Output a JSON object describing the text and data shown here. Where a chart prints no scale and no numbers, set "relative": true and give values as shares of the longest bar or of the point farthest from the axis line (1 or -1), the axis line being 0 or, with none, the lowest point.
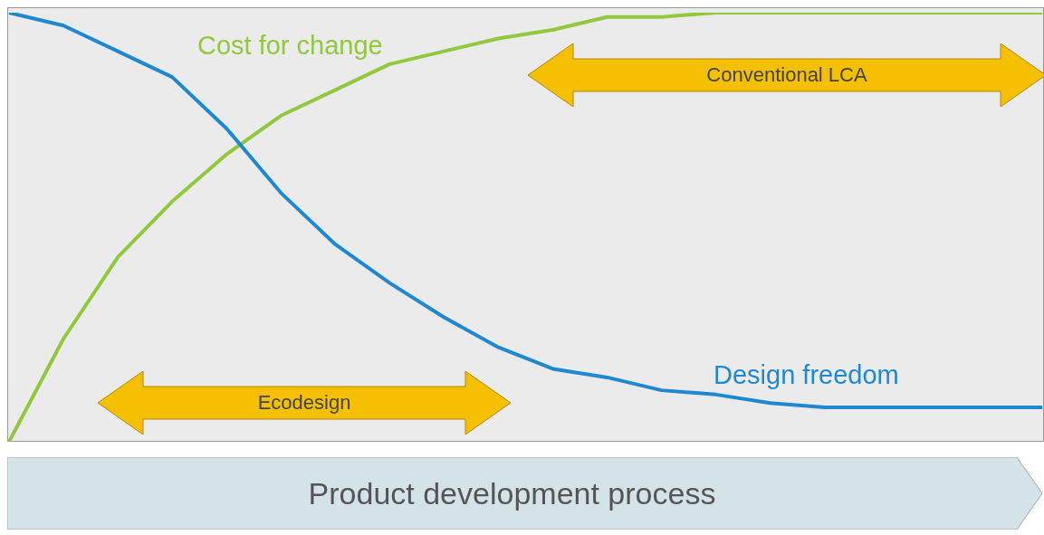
{
  "chart_data": {
    "type": "line",
    "relative": true,
    "xlabel": "Product development process",
    "categories": [
      null,
      null,
      null,
      null,
      null,
      null,
      null,
      null,
      null,
      null,
      null,
      null,
      null,
      null,
      null,
      null,
      null,
      null,
      null,
      null
    ],
    "series": [
      {
        "name": "Cost for change",
        "color": "#92c83e",
        "values": [
          0,
          0.24,
          0.43,
          0.56,
          0.67,
          0.76,
          0.82,
          0.88,
          0.91,
          0.94,
          0.96,
          0.99,
          0.99,
          1,
          1,
          1,
          1,
          1,
          1,
          1
        ]
      },
      {
        "name": "Design freedom",
        "color": "#1f88d0",
        "values": [
          1,
          0.97,
          0.91,
          0.85,
          0.73,
          0.58,
          0.46,
          0.37,
          0.29,
          0.22,
          0.17,
          0.15,
          0.12,
          0.11,
          0.09,
          0.08,
          0.08,
          0.08,
          0.08,
          0.08
        ]
      }
    ],
    "annotations": [
      "Conventional LCA",
      "Ecodesign"
    ],
    "marker": "none",
    "line_style": "solid"
  }
}
